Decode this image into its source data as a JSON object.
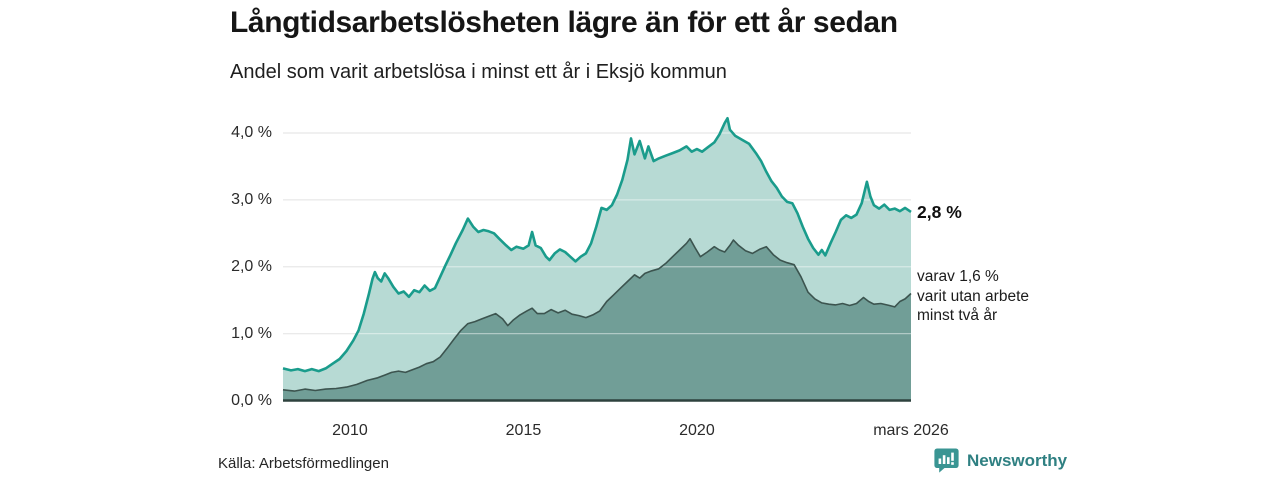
{
  "chart_data": {
    "type": "area",
    "title": "Långtidsarbetslösheten lägre än för ett år sedan",
    "subtitle": "Andel som varit arbetslösa i minst ett år i Eksjö kommun",
    "unit": "%",
    "grid": true,
    "x_domain": [
      2008.07,
      2026.17
    ],
    "ylim": [
      0,
      4.4
    ],
    "x_ticks": [
      {
        "label": "2010",
        "year": 2010
      },
      {
        "label": "2015",
        "year": 2015
      },
      {
        "label": "2020",
        "year": 2020
      },
      {
        "label": "mars 2026",
        "year": 2026.17
      }
    ],
    "y_ticks": [
      {
        "label": "4,0 %",
        "value": 4
      },
      {
        "label": "3,0 %",
        "value": 3
      },
      {
        "label": "2,0 %",
        "value": 2
      },
      {
        "label": "1,0 %",
        "value": 1
      },
      {
        "label": "0,0 %",
        "value": 0
      }
    ],
    "annotations": {
      "total_end": "2,8 %",
      "subset_end_lines": [
        "varav 1,6 %",
        "varit utan arbete",
        "minst två år"
      ]
    },
    "series": [
      {
        "name": "Arbetslösa minst ett år",
        "line_color": "#1a9c8c",
        "fill_color": "#b7dad4",
        "end_value": 2.8,
        "points": [
          [
            2008.07,
            0.48
          ],
          [
            2008.3,
            0.45
          ],
          [
            2008.5,
            0.47
          ],
          [
            2008.7,
            0.44
          ],
          [
            2008.9,
            0.47
          ],
          [
            2009.1,
            0.44
          ],
          [
            2009.3,
            0.48
          ],
          [
            2009.5,
            0.55
          ],
          [
            2009.7,
            0.62
          ],
          [
            2009.9,
            0.74
          ],
          [
            2010.1,
            0.9
          ],
          [
            2010.25,
            1.05
          ],
          [
            2010.4,
            1.3
          ],
          [
            2010.55,
            1.6
          ],
          [
            2010.65,
            1.82
          ],
          [
            2010.72,
            1.92
          ],
          [
            2010.8,
            1.83
          ],
          [
            2010.9,
            1.78
          ],
          [
            2011.0,
            1.9
          ],
          [
            2011.1,
            1.83
          ],
          [
            2011.25,
            1.7
          ],
          [
            2011.4,
            1.6
          ],
          [
            2011.55,
            1.63
          ],
          [
            2011.7,
            1.55
          ],
          [
            2011.85,
            1.65
          ],
          [
            2012.0,
            1.62
          ],
          [
            2012.15,
            1.72
          ],
          [
            2012.3,
            1.64
          ],
          [
            2012.45,
            1.68
          ],
          [
            2012.6,
            1.85
          ],
          [
            2012.75,
            2.02
          ],
          [
            2012.9,
            2.18
          ],
          [
            2013.05,
            2.35
          ],
          [
            2013.25,
            2.55
          ],
          [
            2013.4,
            2.72
          ],
          [
            2013.55,
            2.6
          ],
          [
            2013.7,
            2.52
          ],
          [
            2013.85,
            2.55
          ],
          [
            2014.0,
            2.53
          ],
          [
            2014.15,
            2.5
          ],
          [
            2014.3,
            2.42
          ],
          [
            2014.5,
            2.32
          ],
          [
            2014.65,
            2.25
          ],
          [
            2014.8,
            2.3
          ],
          [
            2015.0,
            2.27
          ],
          [
            2015.15,
            2.32
          ],
          [
            2015.25,
            2.52
          ],
          [
            2015.35,
            2.32
          ],
          [
            2015.5,
            2.28
          ],
          [
            2015.65,
            2.15
          ],
          [
            2015.75,
            2.1
          ],
          [
            2015.9,
            2.2
          ],
          [
            2016.05,
            2.26
          ],
          [
            2016.2,
            2.22
          ],
          [
            2016.35,
            2.15
          ],
          [
            2016.5,
            2.08
          ],
          [
            2016.65,
            2.15
          ],
          [
            2016.8,
            2.2
          ],
          [
            2016.95,
            2.35
          ],
          [
            2017.1,
            2.6
          ],
          [
            2017.25,
            2.88
          ],
          [
            2017.4,
            2.85
          ],
          [
            2017.55,
            2.92
          ],
          [
            2017.7,
            3.08
          ],
          [
            2017.85,
            3.3
          ],
          [
            2018.0,
            3.6
          ],
          [
            2018.1,
            3.92
          ],
          [
            2018.2,
            3.68
          ],
          [
            2018.35,
            3.88
          ],
          [
            2018.5,
            3.62
          ],
          [
            2018.6,
            3.8
          ],
          [
            2018.75,
            3.58
          ],
          [
            2018.9,
            3.62
          ],
          [
            2019.1,
            3.66
          ],
          [
            2019.3,
            3.7
          ],
          [
            2019.5,
            3.74
          ],
          [
            2019.7,
            3.8
          ],
          [
            2019.85,
            3.72
          ],
          [
            2020.0,
            3.76
          ],
          [
            2020.15,
            3.72
          ],
          [
            2020.3,
            3.78
          ],
          [
            2020.5,
            3.86
          ],
          [
            2020.65,
            3.98
          ],
          [
            2020.8,
            4.15
          ],
          [
            2020.88,
            4.22
          ],
          [
            2020.95,
            4.05
          ],
          [
            2021.1,
            3.96
          ],
          [
            2021.3,
            3.9
          ],
          [
            2021.5,
            3.84
          ],
          [
            2021.7,
            3.7
          ],
          [
            2021.85,
            3.58
          ],
          [
            2022.0,
            3.42
          ],
          [
            2022.15,
            3.28
          ],
          [
            2022.3,
            3.18
          ],
          [
            2022.45,
            3.05
          ],
          [
            2022.6,
            2.97
          ],
          [
            2022.75,
            2.95
          ],
          [
            2022.9,
            2.8
          ],
          [
            2023.05,
            2.6
          ],
          [
            2023.2,
            2.42
          ],
          [
            2023.35,
            2.28
          ],
          [
            2023.5,
            2.18
          ],
          [
            2023.6,
            2.25
          ],
          [
            2023.7,
            2.17
          ],
          [
            2023.85,
            2.35
          ],
          [
            2024.0,
            2.52
          ],
          [
            2024.15,
            2.7
          ],
          [
            2024.3,
            2.77
          ],
          [
            2024.45,
            2.73
          ],
          [
            2024.6,
            2.78
          ],
          [
            2024.75,
            2.95
          ],
          [
            2024.9,
            3.27
          ],
          [
            2025.0,
            3.05
          ],
          [
            2025.1,
            2.92
          ],
          [
            2025.25,
            2.87
          ],
          [
            2025.4,
            2.93
          ],
          [
            2025.55,
            2.85
          ],
          [
            2025.7,
            2.87
          ],
          [
            2025.85,
            2.83
          ],
          [
            2026.0,
            2.88
          ],
          [
            2026.17,
            2.82
          ]
        ]
      },
      {
        "name": "Varav utan arbete minst två år",
        "line_color": "#3c544f",
        "fill_color": "#719e97",
        "end_value": 1.6,
        "points": [
          [
            2008.07,
            0.16
          ],
          [
            2008.4,
            0.14
          ],
          [
            2008.7,
            0.17
          ],
          [
            2009.0,
            0.15
          ],
          [
            2009.3,
            0.17
          ],
          [
            2009.6,
            0.18
          ],
          [
            2009.9,
            0.2
          ],
          [
            2010.2,
            0.24
          ],
          [
            2010.5,
            0.3
          ],
          [
            2010.8,
            0.34
          ],
          [
            2011.0,
            0.38
          ],
          [
            2011.2,
            0.42
          ],
          [
            2011.4,
            0.44
          ],
          [
            2011.6,
            0.42
          ],
          [
            2011.8,
            0.46
          ],
          [
            2012.0,
            0.5
          ],
          [
            2012.2,
            0.55
          ],
          [
            2012.4,
            0.58
          ],
          [
            2012.6,
            0.65
          ],
          [
            2012.8,
            0.78
          ],
          [
            2013.0,
            0.92
          ],
          [
            2013.2,
            1.05
          ],
          [
            2013.4,
            1.15
          ],
          [
            2013.6,
            1.18
          ],
          [
            2013.8,
            1.22
          ],
          [
            2014.0,
            1.26
          ],
          [
            2014.2,
            1.3
          ],
          [
            2014.4,
            1.22
          ],
          [
            2014.55,
            1.12
          ],
          [
            2014.7,
            1.2
          ],
          [
            2014.9,
            1.28
          ],
          [
            2015.1,
            1.34
          ],
          [
            2015.25,
            1.38
          ],
          [
            2015.4,
            1.3
          ],
          [
            2015.6,
            1.3
          ],
          [
            2015.8,
            1.36
          ],
          [
            2016.0,
            1.31
          ],
          [
            2016.2,
            1.35
          ],
          [
            2016.4,
            1.29
          ],
          [
            2016.6,
            1.27
          ],
          [
            2016.8,
            1.24
          ],
          [
            2017.0,
            1.28
          ],
          [
            2017.2,
            1.34
          ],
          [
            2017.4,
            1.48
          ],
          [
            2017.6,
            1.58
          ],
          [
            2017.8,
            1.68
          ],
          [
            2018.0,
            1.78
          ],
          [
            2018.2,
            1.88
          ],
          [
            2018.35,
            1.83
          ],
          [
            2018.5,
            1.9
          ],
          [
            2018.7,
            1.94
          ],
          [
            2018.9,
            1.97
          ],
          [
            2019.1,
            2.05
          ],
          [
            2019.3,
            2.15
          ],
          [
            2019.5,
            2.25
          ],
          [
            2019.7,
            2.35
          ],
          [
            2019.8,
            2.42
          ],
          [
            2019.95,
            2.28
          ],
          [
            2020.1,
            2.15
          ],
          [
            2020.3,
            2.22
          ],
          [
            2020.5,
            2.3
          ],
          [
            2020.65,
            2.25
          ],
          [
            2020.8,
            2.22
          ],
          [
            2020.95,
            2.32
          ],
          [
            2021.05,
            2.4
          ],
          [
            2021.2,
            2.32
          ],
          [
            2021.4,
            2.24
          ],
          [
            2021.6,
            2.2
          ],
          [
            2021.8,
            2.26
          ],
          [
            2022.0,
            2.3
          ],
          [
            2022.2,
            2.18
          ],
          [
            2022.4,
            2.1
          ],
          [
            2022.6,
            2.06
          ],
          [
            2022.8,
            2.03
          ],
          [
            2023.0,
            1.85
          ],
          [
            2023.2,
            1.62
          ],
          [
            2023.4,
            1.52
          ],
          [
            2023.6,
            1.46
          ],
          [
            2023.8,
            1.44
          ],
          [
            2024.0,
            1.43
          ],
          [
            2024.2,
            1.45
          ],
          [
            2024.4,
            1.42
          ],
          [
            2024.6,
            1.45
          ],
          [
            2024.8,
            1.54
          ],
          [
            2024.95,
            1.48
          ],
          [
            2025.1,
            1.44
          ],
          [
            2025.3,
            1.45
          ],
          [
            2025.55,
            1.42
          ],
          [
            2025.7,
            1.4
          ],
          [
            2025.85,
            1.48
          ],
          [
            2026.0,
            1.52
          ],
          [
            2026.17,
            1.6
          ]
        ]
      }
    ]
  },
  "footer": {
    "source": "Källa: Arbetsförmedlingen",
    "brand": "Newsworthy"
  },
  "colors": {
    "gridline": "#d9d9d9",
    "axis": "#2e423e",
    "brand_teal": "#2f8082",
    "icon_teal": "#3a9593"
  }
}
